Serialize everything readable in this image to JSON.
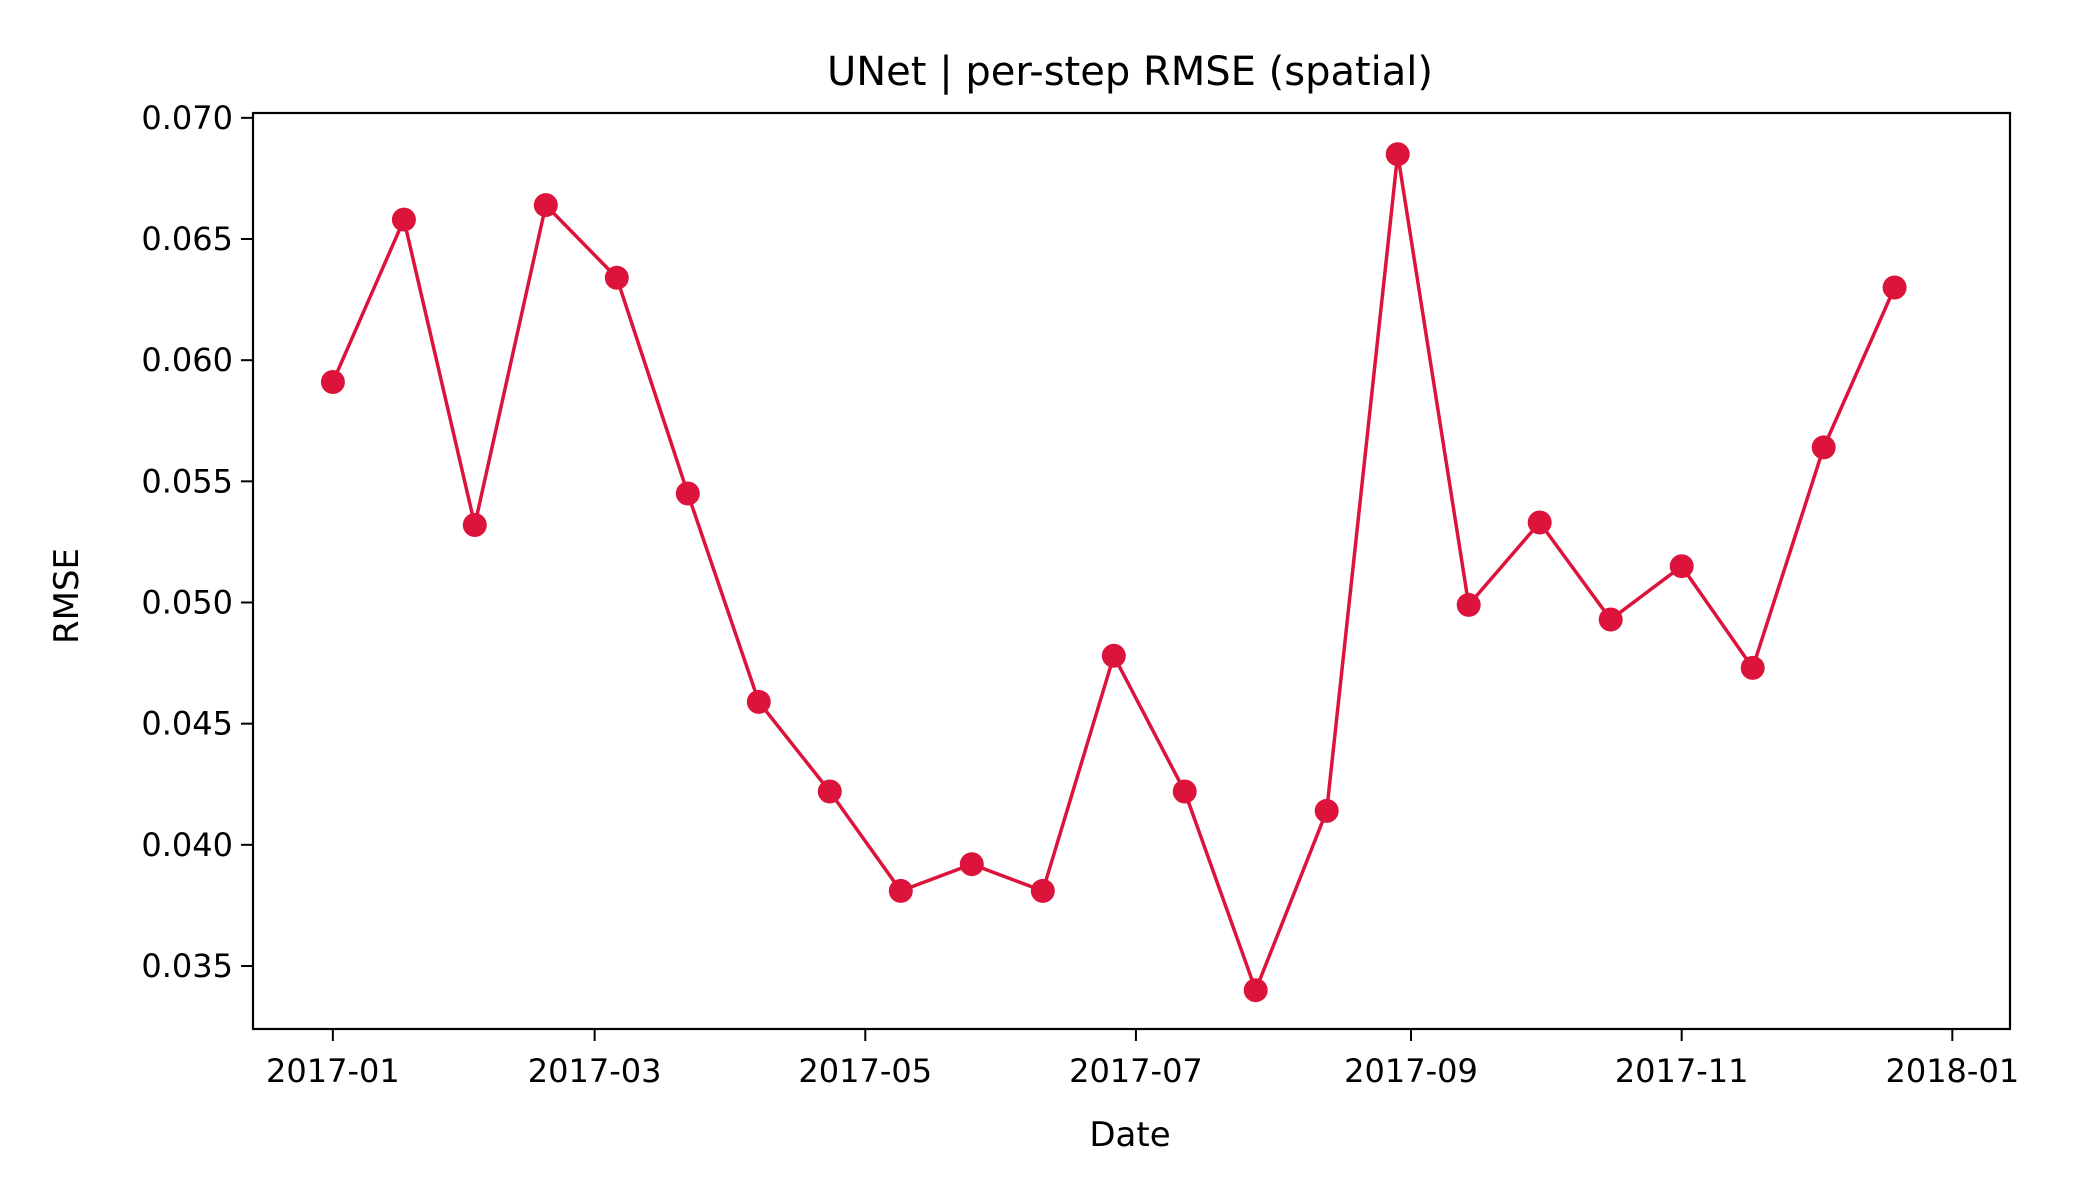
{
  "chart_data": {
    "type": "line",
    "title": "UNet | per-step RMSE (spatial)",
    "xlabel": "Date",
    "ylabel": "RMSE",
    "x_scale": "date",
    "xlim": [
      "2016-12-14",
      "2018-01-14"
    ],
    "ylim": [
      0.0324,
      0.0702
    ],
    "grid": false,
    "color": "#dc143c",
    "x_ticks": [
      "2017-01",
      "2017-03",
      "2017-05",
      "2017-07",
      "2017-09",
      "2017-11",
      "2018-01"
    ],
    "y_ticks": [
      "0.035",
      "0.040",
      "0.045",
      "0.050",
      "0.055",
      "0.060",
      "0.065",
      "0.070"
    ],
    "series": [
      {
        "x": [
          "2017-01-01",
          "2017-01-17",
          "2017-02-02",
          "2017-02-18",
          "2017-03-06",
          "2017-03-22",
          "2017-04-07",
          "2017-04-23",
          "2017-05-09",
          "2017-05-25",
          "2017-06-10",
          "2017-06-26",
          "2017-07-12",
          "2017-07-28",
          "2017-08-13",
          "2017-08-29",
          "2017-09-14",
          "2017-09-30",
          "2017-10-16",
          "2017-11-01",
          "2017-11-17",
          "2017-12-03",
          "2017-12-19"
        ],
        "y": [
          0.0591,
          0.0658,
          0.0532,
          0.0664,
          0.0634,
          0.0545,
          0.0459,
          0.0422,
          0.0381,
          0.0392,
          0.0381,
          0.0478,
          0.0422,
          0.034,
          0.0414,
          0.0685,
          0.0499,
          0.0533,
          0.0493,
          0.0515,
          0.0473,
          0.0564,
          0.063
        ]
      }
    ]
  }
}
